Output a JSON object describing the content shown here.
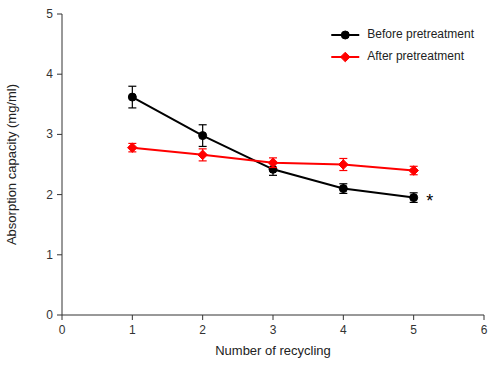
{
  "chart_data": {
    "type": "line",
    "x": [
      1,
      2,
      3,
      4,
      5
    ],
    "series": [
      {
        "name": "Before pretreatment",
        "color": "#000000",
        "marker": "circle",
        "values": [
          3.62,
          2.98,
          2.42,
          2.1,
          1.95
        ],
        "errors": [
          0.18,
          0.18,
          0.1,
          0.08,
          0.08
        ]
      },
      {
        "name": "After pretreatment",
        "color": "#FF0000",
        "marker": "diamond",
        "values": [
          2.78,
          2.66,
          2.53,
          2.5,
          2.4
        ],
        "errors": [
          0.07,
          0.1,
          0.08,
          0.1,
          0.07
        ]
      }
    ],
    "xlabel": "Number of recycling",
    "ylabel": "Absorption capacity (mg/ml)",
    "xlim": [
      0,
      6
    ],
    "ylim": [
      0,
      5
    ],
    "xticks": [
      0,
      1,
      2,
      3,
      4,
      5,
      6
    ],
    "yticks": [
      0,
      1,
      2,
      3,
      4,
      5
    ],
    "grid": false,
    "legend": "upper right",
    "annotations": [
      {
        "text": "*",
        "x": 5.18,
        "y": 1.95
      }
    ]
  }
}
